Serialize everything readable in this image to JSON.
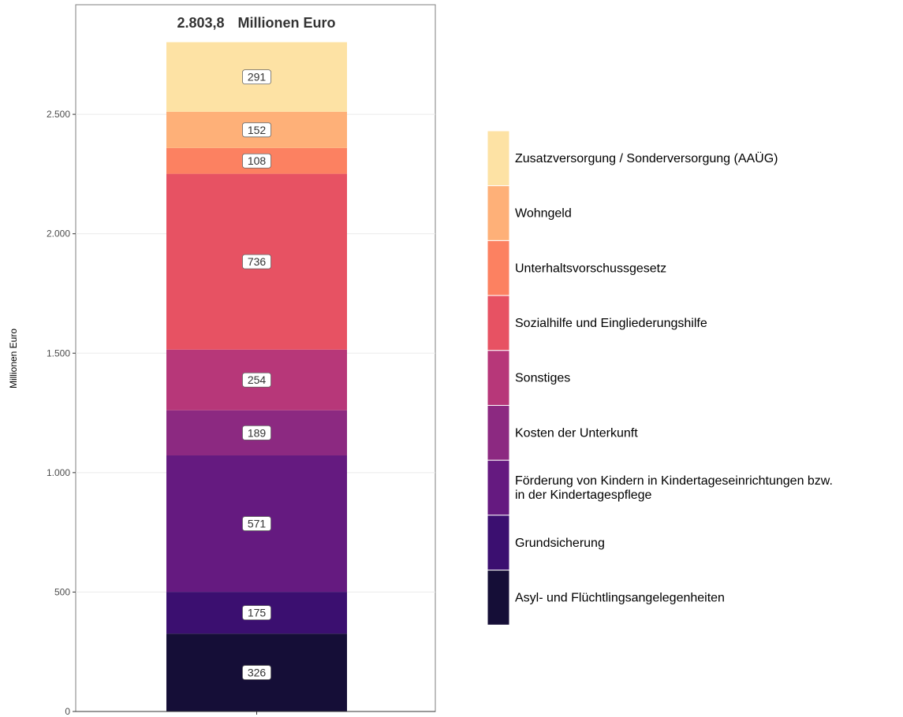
{
  "chart_data": {
    "type": "bar",
    "stacked": true,
    "title": "",
    "total_label": {
      "value": "2.803,8",
      "unit": "Millionen Euro"
    },
    "xlabel": "",
    "ylabel": "Millionen Euro",
    "ylim": [
      0,
      2803.8
    ],
    "yticks": [
      0,
      500,
      1000,
      1500,
      2000,
      2500
    ],
    "ytick_labels": [
      "0",
      "500",
      "1.000",
      "1.500",
      "2.000",
      "2.500"
    ],
    "grid": true,
    "legend_position": "right",
    "series": [
      {
        "name": "Asyl- und Flüchtlingsangelegenheiten",
        "value": 326,
        "label": "326",
        "color": "#150e37"
      },
      {
        "name": "Grundsicherung",
        "value": 175,
        "label": "175",
        "color": "#3b0f70"
      },
      {
        "name": "Förderung von Kindern in Kindertageseinrichtungen bzw. in der Kindertagespflege",
        "legend_lines": [
          "Förderung von Kindern in Kindertageseinrichtungen bzw.",
          "in der Kindertagespflege"
        ],
        "value": 571,
        "label": "571",
        "color": "#651a80"
      },
      {
        "name": "Kosten der Unterkunft",
        "value": 189,
        "label": "189",
        "color": "#8c2981"
      },
      {
        "name": "Sonstiges",
        "value": 254,
        "label": "254",
        "color": "#b73779"
      },
      {
        "name": "Sozialhilfe und Eingliederungshilfe",
        "value": 736,
        "label": "736",
        "color": "#e75263"
      },
      {
        "name": "Unterhaltsvorschussgesetz",
        "value": 108,
        "label": "108",
        "color": "#fc8161"
      },
      {
        "name": "Wohngeld",
        "value": 152,
        "label": "152",
        "color": "#feb078"
      },
      {
        "name": "Zusatzversorgung / Sonderversorgung (AAÜG)",
        "value": 291,
        "label": "291",
        "color": "#fde2a4"
      }
    ]
  }
}
